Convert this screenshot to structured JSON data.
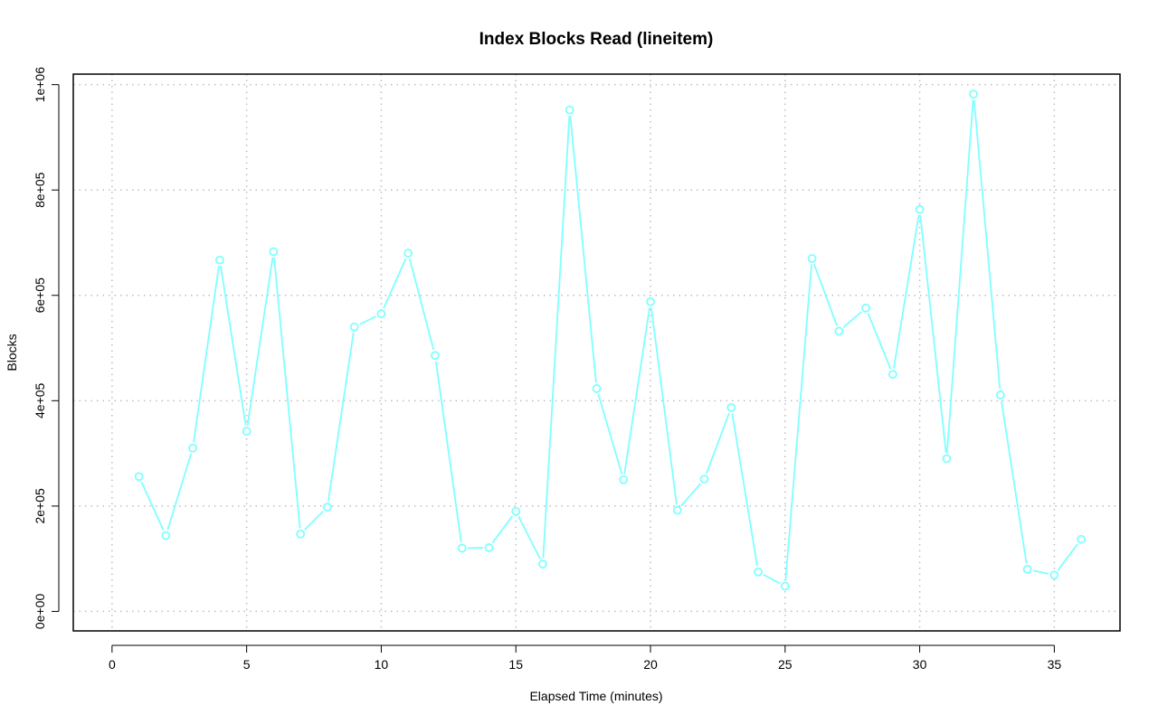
{
  "chart_data": {
    "type": "line",
    "title": "Index Blocks Read (lineitem)",
    "xlabel": "Elapsed Time (minutes)",
    "ylabel": "Blocks",
    "xlim": [
      -1.44,
      37.44
    ],
    "ylim": [
      -37000,
      1020000
    ],
    "x_ticks": [
      0,
      5,
      10,
      15,
      20,
      25,
      30,
      35
    ],
    "x_tick_labels": [
      "0",
      "5",
      "10",
      "15",
      "20",
      "25",
      "30",
      "35"
    ],
    "y_ticks": [
      0,
      200000,
      400000,
      600000,
      800000,
      1000000
    ],
    "y_tick_labels": [
      "0e+00",
      "2e+05",
      "4e+05",
      "6e+05",
      "8e+05",
      "1e+06"
    ],
    "grid": true,
    "series": [
      {
        "color": "#7fffff",
        "x": [
          1,
          2,
          3,
          4,
          5,
          6,
          7,
          8,
          9,
          10,
          11,
          12,
          13,
          14,
          15,
          16,
          17,
          18,
          19,
          20,
          21,
          22,
          23,
          24,
          25,
          26,
          27,
          28,
          29,
          30,
          31,
          32,
          33,
          34,
          35,
          36
        ],
        "y": [
          256000,
          144000,
          310000,
          667000,
          342000,
          683000,
          147000,
          198000,
          540000,
          565000,
          680000,
          486000,
          120000,
          121000,
          190000,
          90000,
          952000,
          423000,
          250000,
          588000,
          192000,
          251000,
          387000,
          75000,
          48000,
          670000,
          532000,
          576000,
          450000,
          763000,
          290000,
          982000,
          411000,
          80000,
          69000,
          137000
        ]
      }
    ]
  }
}
